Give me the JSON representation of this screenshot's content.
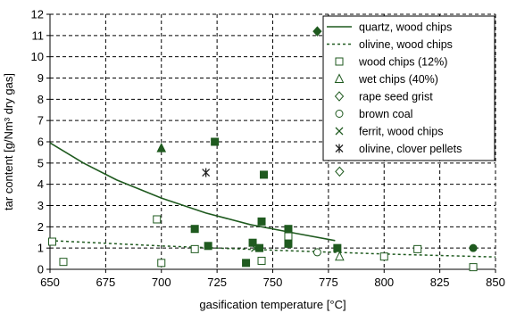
{
  "chart_data": {
    "type": "scatter",
    "title": "",
    "xlabel": "gasification temperature [°C]",
    "ylabel": "tar content [g/Nm³ dry gas]",
    "xlim": [
      650,
      850
    ],
    "ylim": [
      0,
      12
    ],
    "xticks": [
      650,
      675,
      700,
      725,
      750,
      775,
      800,
      825,
      850
    ],
    "yticks": [
      0,
      1,
      2,
      3,
      4,
      5,
      6,
      7,
      8,
      9,
      10,
      11,
      12
    ],
    "grid": "dashed",
    "legend_position": "top-right",
    "color": "#1f5a1f",
    "series": [
      {
        "name": "quartz, wood chips",
        "kind": "line",
        "style": "solid",
        "x": [
          650,
          665,
          680,
          700,
          720,
          740,
          760,
          778
        ],
        "y": [
          5.95,
          5.0,
          4.2,
          3.35,
          2.65,
          2.1,
          1.7,
          1.35
        ]
      },
      {
        "name": "olivine, wood chips",
        "kind": "line",
        "style": "dotted",
        "x": [
          650,
          700,
          750,
          800,
          850
        ],
        "y": [
          1.35,
          1.1,
          0.9,
          0.72,
          0.58
        ]
      },
      {
        "name": "wood chips (12%)",
        "kind": "marker",
        "marker": "square-open",
        "x": [
          651,
          656,
          698,
          700,
          715,
          745,
          757,
          800,
          815,
          840
        ],
        "y": [
          1.3,
          0.35,
          2.35,
          0.3,
          0.95,
          0.4,
          1.55,
          0.6,
          0.95,
          0.1
        ]
      },
      {
        "name": "square-filled",
        "kind": "marker",
        "marker": "square-filled",
        "in_legend": false,
        "x": [
          715,
          721,
          724,
          738,
          741,
          744,
          745,
          746,
          757,
          757,
          779
        ],
        "y": [
          1.9,
          1.1,
          6.0,
          0.3,
          1.25,
          1.0,
          2.25,
          4.45,
          1.9,
          1.2,
          1.0
        ]
      },
      {
        "name": "wet chips (40%)",
        "kind": "marker",
        "marker": "triangle-open",
        "x": [
          780
        ],
        "y": [
          0.6
        ]
      },
      {
        "name": "triangle-filled",
        "kind": "marker",
        "marker": "triangle-filled",
        "in_legend": false,
        "x": [
          700
        ],
        "y": [
          5.7
        ]
      },
      {
        "name": "rape seed grist",
        "kind": "marker",
        "marker": "diamond-open",
        "x": [
          780
        ],
        "y": [
          4.6
        ]
      },
      {
        "name": "diamond-filled",
        "kind": "marker",
        "marker": "diamond-filled",
        "in_legend": false,
        "x": [
          770
        ],
        "y": [
          11.2
        ]
      },
      {
        "name": "brown coal",
        "kind": "marker",
        "marker": "circle-open",
        "x": [
          770
        ],
        "y": [
          0.8
        ]
      },
      {
        "name": "circle-filled",
        "kind": "marker",
        "marker": "circle-filled",
        "in_legend": false,
        "x": [
          840
        ],
        "y": [
          1.0
        ]
      },
      {
        "name": "ferrit, wood chips",
        "kind": "marker",
        "marker": "x",
        "x": [
          742
        ],
        "y": [
          1.0
        ]
      },
      {
        "name": "olivine, clover pellets",
        "kind": "marker",
        "marker": "asterisk",
        "x": [
          720
        ],
        "y": [
          4.55
        ]
      }
    ]
  }
}
